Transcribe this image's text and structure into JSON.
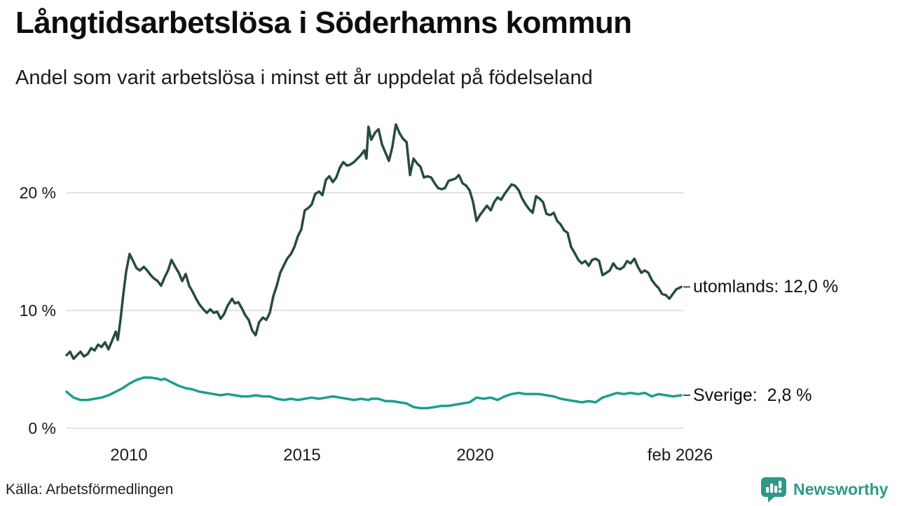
{
  "title": "Långtidsarbetslösa i Söderhamns kommun",
  "subtitle": "Andel som varit arbetslösa i minst ett år uppdelat på födelseland",
  "source": "Källa: Arbetsförmedlingen",
  "branding": {
    "name": "Newsworthy",
    "color": "#2e988a",
    "icon": "speech-bubble-bar-chart-icon"
  },
  "colors": {
    "foreign_born_line": "#254b42",
    "sweden_born_line": "#1c9e8c",
    "gridline": "#e2e2e2",
    "leader_dash": "#4d4d4d",
    "text": "#1a1a1a"
  },
  "chart_data": {
    "type": "line",
    "title": "Långtidsarbetslösa i Söderhamns kommun",
    "subtitle": "Andel som varit arbetslösa i minst ett år uppdelat på födelseland",
    "xlabel": "",
    "ylabel": "",
    "x_unit": "decimal year (monthly data)",
    "y_unit": "percent",
    "xlim": [
      2008.2,
      2025.95
    ],
    "ylim": [
      0,
      26.8
    ],
    "grid": "horizontal",
    "legend_position": "end-of-line labels, right side",
    "y_ticks": [
      {
        "label": "0 %",
        "value": 0
      },
      {
        "label": "10 %",
        "value": 10
      },
      {
        "label": "20 %",
        "value": 20
      }
    ],
    "x_ticks": [
      {
        "label": "2010",
        "value": 2010
      },
      {
        "label": "2015",
        "value": 2015
      },
      {
        "label": "2020",
        "value": 2020
      },
      {
        "label": "feb 2026",
        "value": 2025.92
      }
    ],
    "series": [
      {
        "name": "utomlands",
        "label": "utomlands: 12,0 %",
        "latest_value": "12,0 %",
        "color": "#254b42",
        "points": [
          [
            2008.2,
            6.2
          ],
          [
            2008.3,
            6.5
          ],
          [
            2008.4,
            5.9
          ],
          [
            2008.5,
            6.2
          ],
          [
            2008.6,
            6.5
          ],
          [
            2008.7,
            6.1
          ],
          [
            2008.81,
            6.3
          ],
          [
            2008.91,
            6.8
          ],
          [
            2009.01,
            6.6
          ],
          [
            2009.11,
            7.1
          ],
          [
            2009.21,
            6.9
          ],
          [
            2009.31,
            7.3
          ],
          [
            2009.41,
            6.7
          ],
          [
            2009.51,
            7.4
          ],
          [
            2009.62,
            8.2
          ],
          [
            2009.68,
            7.5
          ],
          [
            2009.76,
            9.3
          ],
          [
            2009.84,
            11.4
          ],
          [
            2009.92,
            13.3
          ],
          [
            2010.02,
            14.8
          ],
          [
            2010.12,
            14.2
          ],
          [
            2010.22,
            13.6
          ],
          [
            2010.32,
            13.4
          ],
          [
            2010.43,
            13.7
          ],
          [
            2010.53,
            13.4
          ],
          [
            2010.63,
            13.0
          ],
          [
            2010.73,
            12.7
          ],
          [
            2010.83,
            12.5
          ],
          [
            2010.93,
            12.1
          ],
          [
            2011.03,
            12.8
          ],
          [
            2011.13,
            13.4
          ],
          [
            2011.23,
            14.3
          ],
          [
            2011.34,
            13.7
          ],
          [
            2011.44,
            13.2
          ],
          [
            2011.54,
            12.5
          ],
          [
            2011.64,
            13.1
          ],
          [
            2011.74,
            12.1
          ],
          [
            2011.84,
            11.6
          ],
          [
            2011.94,
            11.0
          ],
          [
            2012.04,
            10.5
          ],
          [
            2012.15,
            10.1
          ],
          [
            2012.25,
            9.8
          ],
          [
            2012.35,
            10.1
          ],
          [
            2012.45,
            9.8
          ],
          [
            2012.55,
            9.9
          ],
          [
            2012.65,
            9.3
          ],
          [
            2012.75,
            9.7
          ],
          [
            2012.85,
            10.4
          ],
          [
            2012.98,
            11.0
          ],
          [
            2013.06,
            10.6
          ],
          [
            2013.16,
            10.7
          ],
          [
            2013.26,
            10.2
          ],
          [
            2013.36,
            9.6
          ],
          [
            2013.46,
            9.2
          ],
          [
            2013.56,
            8.3
          ],
          [
            2013.66,
            7.9
          ],
          [
            2013.76,
            9.0
          ],
          [
            2013.87,
            9.4
          ],
          [
            2013.97,
            9.2
          ],
          [
            2014.07,
            9.8
          ],
          [
            2014.17,
            11.2
          ],
          [
            2014.27,
            12.1
          ],
          [
            2014.37,
            13.2
          ],
          [
            2014.47,
            13.8
          ],
          [
            2014.57,
            14.4
          ],
          [
            2014.68,
            14.8
          ],
          [
            2014.78,
            15.4
          ],
          [
            2014.88,
            16.3
          ],
          [
            2014.98,
            16.9
          ],
          [
            2015.08,
            18.5
          ],
          [
            2015.18,
            18.7
          ],
          [
            2015.28,
            19.0
          ],
          [
            2015.38,
            19.9
          ],
          [
            2015.49,
            20.1
          ],
          [
            2015.59,
            19.8
          ],
          [
            2015.69,
            21.1
          ],
          [
            2015.79,
            21.4
          ],
          [
            2015.89,
            20.9
          ],
          [
            2015.99,
            21.3
          ],
          [
            2016.09,
            22.1
          ],
          [
            2016.19,
            22.6
          ],
          [
            2016.3,
            22.3
          ],
          [
            2016.4,
            22.4
          ],
          [
            2016.5,
            22.6
          ],
          [
            2016.6,
            22.9
          ],
          [
            2016.7,
            23.2
          ],
          [
            2016.8,
            23.6
          ],
          [
            2016.86,
            22.9
          ],
          [
            2016.92,
            25.6
          ],
          [
            2017.0,
            24.5
          ],
          [
            2017.11,
            25.1
          ],
          [
            2017.21,
            25.4
          ],
          [
            2017.31,
            24.1
          ],
          [
            2017.41,
            23.4
          ],
          [
            2017.51,
            22.7
          ],
          [
            2017.61,
            23.9
          ],
          [
            2017.71,
            25.8
          ],
          [
            2017.81,
            25.1
          ],
          [
            2017.91,
            24.6
          ],
          [
            2018.02,
            24.3
          ],
          [
            2018.12,
            21.5
          ],
          [
            2018.22,
            22.9
          ],
          [
            2018.32,
            22.5
          ],
          [
            2018.42,
            22.2
          ],
          [
            2018.52,
            21.3
          ],
          [
            2018.62,
            21.4
          ],
          [
            2018.73,
            21.3
          ],
          [
            2018.83,
            20.8
          ],
          [
            2018.93,
            20.4
          ],
          [
            2019.03,
            20.3
          ],
          [
            2019.13,
            20.4
          ],
          [
            2019.23,
            21.0
          ],
          [
            2019.33,
            21.1
          ],
          [
            2019.43,
            21.2
          ],
          [
            2019.53,
            21.5
          ],
          [
            2019.64,
            20.8
          ],
          [
            2019.74,
            20.6
          ],
          [
            2019.84,
            20.2
          ],
          [
            2019.94,
            19.2
          ],
          [
            2020.04,
            17.6
          ],
          [
            2020.14,
            18.1
          ],
          [
            2020.24,
            18.5
          ],
          [
            2020.34,
            18.9
          ],
          [
            2020.45,
            18.5
          ],
          [
            2020.55,
            19.2
          ],
          [
            2020.65,
            19.6
          ],
          [
            2020.75,
            19.4
          ],
          [
            2020.85,
            19.9
          ],
          [
            2020.95,
            20.3
          ],
          [
            2021.05,
            20.7
          ],
          [
            2021.15,
            20.6
          ],
          [
            2021.26,
            20.2
          ],
          [
            2021.36,
            19.5
          ],
          [
            2021.46,
            19.0
          ],
          [
            2021.56,
            18.6
          ],
          [
            2021.66,
            18.3
          ],
          [
            2021.76,
            19.7
          ],
          [
            2021.86,
            19.5
          ],
          [
            2021.96,
            19.2
          ],
          [
            2022.06,
            18.2
          ],
          [
            2022.17,
            18.1
          ],
          [
            2022.27,
            18.3
          ],
          [
            2022.37,
            17.6
          ],
          [
            2022.47,
            17.3
          ],
          [
            2022.57,
            16.8
          ],
          [
            2022.67,
            16.6
          ],
          [
            2022.77,
            15.4
          ],
          [
            2022.87,
            14.9
          ],
          [
            2022.98,
            14.3
          ],
          [
            2023.08,
            14.0
          ],
          [
            2023.18,
            14.2
          ],
          [
            2023.28,
            13.8
          ],
          [
            2023.38,
            14.3
          ],
          [
            2023.48,
            14.4
          ],
          [
            2023.58,
            14.2
          ],
          [
            2023.68,
            13.0
          ],
          [
            2023.79,
            13.2
          ],
          [
            2023.89,
            13.4
          ],
          [
            2023.99,
            14.0
          ],
          [
            2024.09,
            13.6
          ],
          [
            2024.19,
            13.5
          ],
          [
            2024.29,
            13.7
          ],
          [
            2024.39,
            14.2
          ],
          [
            2024.49,
            14.0
          ],
          [
            2024.6,
            14.4
          ],
          [
            2024.7,
            13.7
          ],
          [
            2024.8,
            13.2
          ],
          [
            2024.9,
            13.4
          ],
          [
            2025.0,
            13.2
          ],
          [
            2025.1,
            12.6
          ],
          [
            2025.2,
            12.2
          ],
          [
            2025.3,
            11.9
          ],
          [
            2025.4,
            11.4
          ],
          [
            2025.51,
            11.3
          ],
          [
            2025.61,
            11.0
          ],
          [
            2025.71,
            11.4
          ],
          [
            2025.81,
            11.8
          ],
          [
            2025.95,
            12.0
          ]
        ]
      },
      {
        "name": "sverige",
        "label": "Sverige:  2,8 %",
        "latest_value": "2,8 %",
        "color": "#1c9e8c",
        "points": [
          [
            2008.2,
            3.1
          ],
          [
            2008.4,
            2.6
          ],
          [
            2008.6,
            2.4
          ],
          [
            2008.81,
            2.4
          ],
          [
            2009.01,
            2.5
          ],
          [
            2009.21,
            2.6
          ],
          [
            2009.41,
            2.8
          ],
          [
            2009.62,
            3.1
          ],
          [
            2009.82,
            3.4
          ],
          [
            2010.02,
            3.8
          ],
          [
            2010.22,
            4.1
          ],
          [
            2010.43,
            4.3
          ],
          [
            2010.63,
            4.3
          ],
          [
            2010.83,
            4.2
          ],
          [
            2010.93,
            4.1
          ],
          [
            2011.03,
            4.2
          ],
          [
            2011.23,
            3.9
          ],
          [
            2011.44,
            3.6
          ],
          [
            2011.64,
            3.4
          ],
          [
            2011.84,
            3.3
          ],
          [
            2012.04,
            3.1
          ],
          [
            2012.25,
            3.0
          ],
          [
            2012.45,
            2.9
          ],
          [
            2012.65,
            2.8
          ],
          [
            2012.85,
            2.9
          ],
          [
            2013.06,
            2.8
          ],
          [
            2013.26,
            2.7
          ],
          [
            2013.46,
            2.7
          ],
          [
            2013.66,
            2.8
          ],
          [
            2013.87,
            2.7
          ],
          [
            2014.07,
            2.7
          ],
          [
            2014.27,
            2.5
          ],
          [
            2014.47,
            2.4
          ],
          [
            2014.68,
            2.5
          ],
          [
            2014.88,
            2.4
          ],
          [
            2015.08,
            2.5
          ],
          [
            2015.28,
            2.6
          ],
          [
            2015.49,
            2.5
          ],
          [
            2015.69,
            2.6
          ],
          [
            2015.89,
            2.7
          ],
          [
            2016.09,
            2.6
          ],
          [
            2016.3,
            2.5
          ],
          [
            2016.5,
            2.4
          ],
          [
            2016.7,
            2.5
          ],
          [
            2016.92,
            2.4
          ],
          [
            2017.0,
            2.5
          ],
          [
            2017.21,
            2.5
          ],
          [
            2017.41,
            2.3
          ],
          [
            2017.61,
            2.3
          ],
          [
            2017.81,
            2.2
          ],
          [
            2018.02,
            2.1
          ],
          [
            2018.22,
            1.8
          ],
          [
            2018.42,
            1.7
          ],
          [
            2018.62,
            1.7
          ],
          [
            2018.83,
            1.8
          ],
          [
            2019.03,
            1.9
          ],
          [
            2019.23,
            1.9
          ],
          [
            2019.43,
            2.0
          ],
          [
            2019.64,
            2.1
          ],
          [
            2019.84,
            2.2
          ],
          [
            2020.04,
            2.6
          ],
          [
            2020.24,
            2.5
          ],
          [
            2020.45,
            2.6
          ],
          [
            2020.65,
            2.4
          ],
          [
            2020.85,
            2.7
          ],
          [
            2021.05,
            2.9
          ],
          [
            2021.26,
            3.0
          ],
          [
            2021.46,
            2.9
          ],
          [
            2021.66,
            2.9
          ],
          [
            2021.86,
            2.9
          ],
          [
            2022.06,
            2.8
          ],
          [
            2022.27,
            2.7
          ],
          [
            2022.47,
            2.5
          ],
          [
            2022.67,
            2.4
          ],
          [
            2022.87,
            2.3
          ],
          [
            2023.08,
            2.2
          ],
          [
            2023.28,
            2.3
          ],
          [
            2023.48,
            2.2
          ],
          [
            2023.68,
            2.6
          ],
          [
            2023.89,
            2.8
          ],
          [
            2024.09,
            3.0
          ],
          [
            2024.29,
            2.9
          ],
          [
            2024.49,
            3.0
          ],
          [
            2024.7,
            2.9
          ],
          [
            2024.9,
            3.0
          ],
          [
            2025.1,
            2.7
          ],
          [
            2025.3,
            2.9
          ],
          [
            2025.51,
            2.8
          ],
          [
            2025.71,
            2.7
          ],
          [
            2025.95,
            2.8
          ]
        ]
      }
    ]
  }
}
